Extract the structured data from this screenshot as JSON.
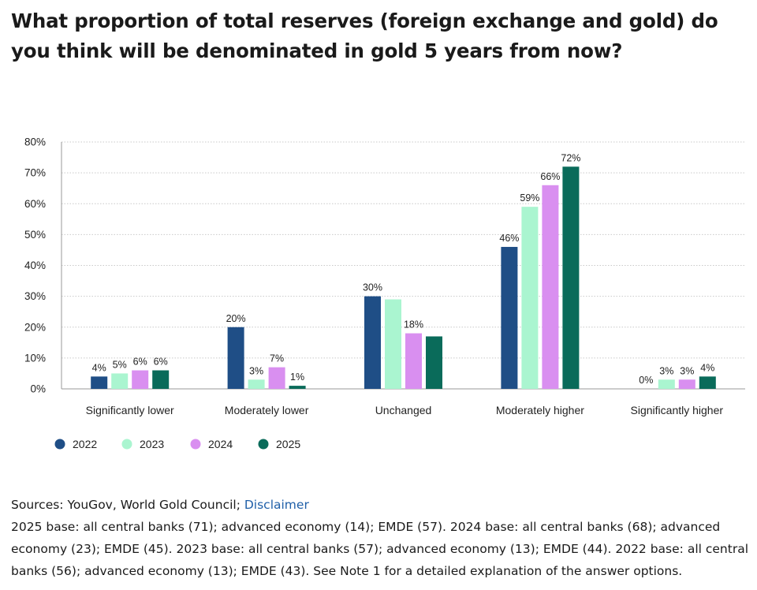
{
  "title": "What proportion of total reserves (foreign exchange and gold) do you think will be denominated in gold 5 years from now?",
  "chart_data": {
    "type": "bar",
    "title": "What proportion of total reserves (foreign exchange and gold) do you think will be denominated in gold 5 years from now?",
    "categories": [
      "Significantly lower",
      "Moderately lower",
      "Unchanged",
      "Moderately higher",
      "Significantly higher"
    ],
    "series": [
      {
        "name": "2022",
        "color": "#1f4e86",
        "values": [
          4,
          20,
          30,
          46,
          0
        ],
        "labels": [
          "4%",
          "20%",
          "30%",
          "46%",
          "0%"
        ]
      },
      {
        "name": "2023",
        "color": "#aaf5d0",
        "values": [
          5,
          3,
          29,
          59,
          3
        ],
        "labels": [
          "5%",
          "3%",
          "",
          "59%",
          "3%"
        ]
      },
      {
        "name": "2024",
        "color": "#d98ff0",
        "values": [
          6,
          7,
          18,
          66,
          3
        ],
        "labels": [
          "6%",
          "7%",
          "18%",
          "66%",
          "3%"
        ]
      },
      {
        "name": "2025",
        "color": "#0a6b5a",
        "values": [
          6,
          1,
          17,
          72,
          4
        ],
        "labels": [
          "6%",
          "1%",
          "",
          "72%",
          "4%"
        ]
      }
    ],
    "ylim": [
      0,
      80
    ],
    "yticks": [
      0,
      10,
      20,
      30,
      40,
      50,
      60,
      70,
      80
    ],
    "ytick_labels": [
      "0%",
      "10%",
      "20%",
      "30%",
      "40%",
      "50%",
      "60%",
      "70%",
      "80%"
    ],
    "grid": "horizontal dotted",
    "legend": "bottom-left",
    "xlabel": "",
    "ylabel": ""
  },
  "footer": {
    "sources_prefix": "Sources: YouGov, World Gold Council; ",
    "disclaimer_link": "Disclaimer",
    "note": "2025 base: all central banks (71); advanced economy (14); EMDE (57). 2024 base: all central banks (68); advanced economy (23); EMDE (45). 2023 base: all central banks (57); advanced economy (13); EMDE (44). 2022 base: all central banks (56); advanced economy (13); EMDE (43). See Note 1 for a detailed explanation of the answer options."
  }
}
